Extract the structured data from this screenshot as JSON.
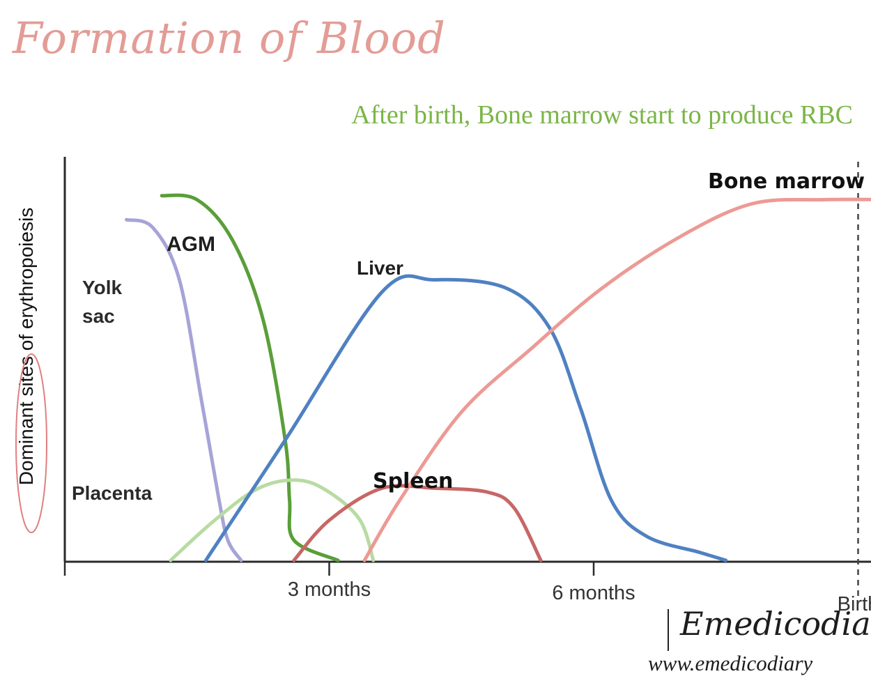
{
  "header": {
    "title": "Formation of Blood",
    "subtitle": "After birth, Bone marrow start to produce RBC"
  },
  "chart_data": {
    "type": "line",
    "ylabel": "Dominant sites of erythropoiesis",
    "x_ticks": [
      "3 months",
      "6 months",
      "Birth",
      "3 months"
    ],
    "marker_line": "Birth",
    "y_range": [
      0,
      1
    ],
    "series": [
      {
        "name": "Yolk sac",
        "label_lines": [
          "Yolk",
          "sac"
        ],
        "color": "#a6a4d6",
        "points": [
          [
            0.7,
            0.85
          ],
          [
            1.0,
            0.83
          ],
          [
            1.3,
            0.7
          ],
          [
            1.55,
            0.4
          ],
          [
            1.75,
            0.15
          ],
          [
            1.85,
            0.05
          ],
          [
            2.0,
            0.0
          ]
        ]
      },
      {
        "name": "AGM",
        "color": "#5a9e3a",
        "points": [
          [
            1.1,
            0.91
          ],
          [
            1.5,
            0.9
          ],
          [
            1.9,
            0.8
          ],
          [
            2.25,
            0.6
          ],
          [
            2.5,
            0.3
          ],
          [
            2.55,
            0.15
          ],
          [
            2.6,
            0.05
          ],
          [
            3.1,
            0.0
          ]
        ]
      },
      {
        "name": "Placenta",
        "color": "#b8dba2",
        "points": [
          [
            1.2,
            0.0
          ],
          [
            1.7,
            0.1
          ],
          [
            2.2,
            0.18
          ],
          [
            2.65,
            0.2
          ],
          [
            3.0,
            0.17
          ],
          [
            3.35,
            0.1
          ],
          [
            3.5,
            0.0
          ]
        ]
      },
      {
        "name": "Liver",
        "color": "#4f81c2",
        "points": [
          [
            1.6,
            0.0
          ],
          [
            2.5,
            0.3
          ],
          [
            3.6,
            0.67
          ],
          [
            4.2,
            0.7
          ],
          [
            5.0,
            0.68
          ],
          [
            5.5,
            0.58
          ],
          [
            5.85,
            0.38
          ],
          [
            6.2,
            0.15
          ],
          [
            6.6,
            0.06
          ],
          [
            7.2,
            0.02
          ],
          [
            7.5,
            0.0
          ]
        ]
      },
      {
        "name": "Spleen",
        "color": "#c76767",
        "points": [
          [
            2.6,
            0.0
          ],
          [
            3.0,
            0.1
          ],
          [
            3.6,
            0.18
          ],
          [
            4.2,
            0.18
          ],
          [
            4.8,
            0.17
          ],
          [
            5.1,
            0.13
          ],
          [
            5.4,
            0.0
          ]
        ]
      },
      {
        "name": "Bone marrow",
        "color": "#ec9a95",
        "points": [
          [
            3.4,
            0.0
          ],
          [
            3.8,
            0.15
          ],
          [
            4.5,
            0.37
          ],
          [
            5.3,
            0.53
          ],
          [
            6.1,
            0.68
          ],
          [
            7.0,
            0.81
          ],
          [
            7.8,
            0.89
          ],
          [
            8.6,
            0.9
          ],
          [
            9.4,
            0.9
          ],
          [
            9.8,
            0.9
          ]
        ]
      }
    ]
  },
  "branding": {
    "name": "Emedicodiary",
    "url": "www.emedicodiary"
  }
}
